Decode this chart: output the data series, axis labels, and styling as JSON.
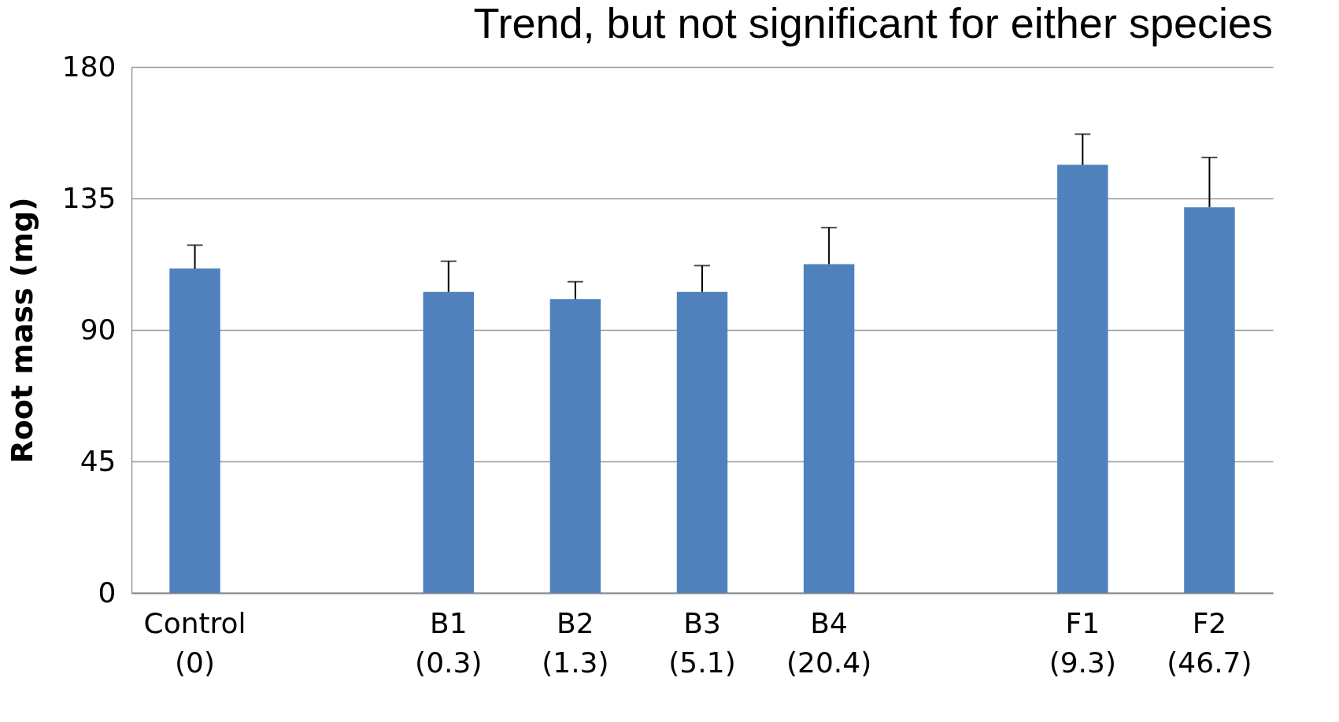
{
  "chart_data": {
    "type": "bar",
    "title": "Trend, but not significant for either species",
    "ylabel": "Root mass (mg)",
    "categories": [
      "Control\n(0)",
      null,
      "B1\n(0.3)",
      "B2\n(1.3)",
      "B3\n(5.1)",
      "B4\n(20.4)",
      null,
      "F1\n(9.3)",
      "F2\n(46.7)"
    ],
    "values": [
      111,
      null,
      103,
      100.5,
      103,
      112.5,
      null,
      146.5,
      132
    ],
    "errors": [
      [
        111,
        119
      ],
      null,
      [
        103,
        113.5
      ],
      [
        100.5,
        106.5
      ],
      [
        103,
        112
      ],
      [
        112.5,
        125
      ],
      null,
      [
        146.5,
        157
      ],
      [
        132,
        149
      ]
    ],
    "color": "#4f81bd",
    "ylim": [
      0,
      180
    ],
    "yticks": [
      0,
      45,
      90,
      135,
      180
    ],
    "grid": "y"
  }
}
